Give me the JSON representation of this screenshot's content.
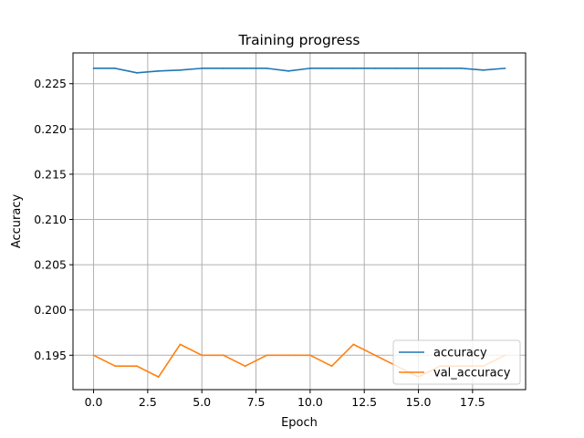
{
  "chart_data": {
    "type": "line",
    "title": "Training progress",
    "xlabel": "Epoch",
    "ylabel": "Accuracy",
    "xlim": [
      -0.95,
      19.95
    ],
    "ylim": [
      0.1912,
      0.2284
    ],
    "xticks": [
      0.0,
      2.5,
      5.0,
      7.5,
      10.0,
      12.5,
      15.0,
      17.5
    ],
    "xtick_labels": [
      "0.0",
      "2.5",
      "5.0",
      "7.5",
      "10.0",
      "12.5",
      "15.0",
      "17.5"
    ],
    "yticks": [
      0.195,
      0.2,
      0.205,
      0.21,
      0.215,
      0.22,
      0.225
    ],
    "ytick_labels": [
      "0.195",
      "0.200",
      "0.205",
      "0.210",
      "0.215",
      "0.220",
      "0.225"
    ],
    "grid": true,
    "legend_position": "lower-right",
    "x": [
      0,
      1,
      2,
      3,
      4,
      5,
      6,
      7,
      8,
      9,
      10,
      11,
      12,
      13,
      14,
      15,
      16,
      17,
      18,
      19
    ],
    "series": [
      {
        "name": "accuracy",
        "color": "#1f77b4",
        "values": [
          0.2267,
          0.2267,
          0.2262,
          0.2264,
          0.2265,
          0.2267,
          0.2267,
          0.2267,
          0.2267,
          0.2264,
          0.2267,
          0.2267,
          0.2267,
          0.2267,
          0.2267,
          0.2267,
          0.2267,
          0.2267,
          0.2265,
          0.2267
        ]
      },
      {
        "name": "val_accuracy",
        "color": "#ff7f0e",
        "values": [
          0.195,
          0.1938,
          0.1938,
          0.1926,
          0.1962,
          0.195,
          0.195,
          0.1938,
          0.195,
          0.195,
          0.195,
          0.1938,
          0.1962,
          0.195,
          0.1938,
          0.1926,
          0.1938,
          0.1938,
          0.1938,
          0.195
        ]
      }
    ]
  }
}
